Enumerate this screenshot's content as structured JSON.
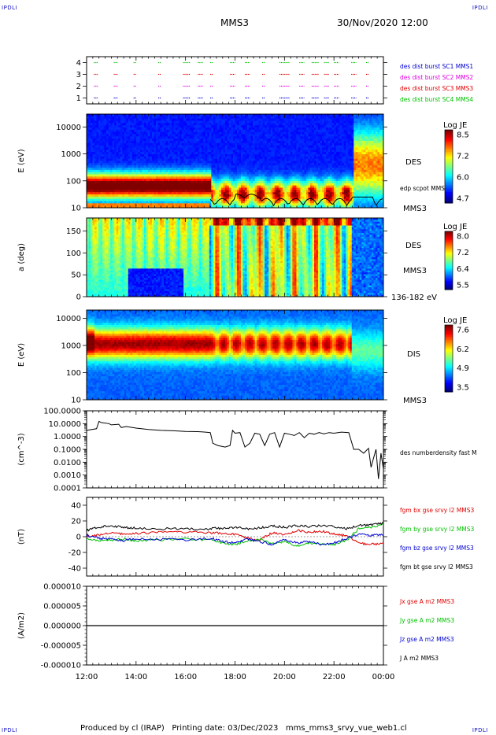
{
  "header": {
    "corner_label": "IPDLI",
    "spacecraft": "MMS3",
    "datetime": "30/Nov/2020 12:00"
  },
  "footer": {
    "produced_by": "Produced by cl (IRAP)",
    "printing_date": "Printing date: 03/Dec/2023",
    "filename": "mms_mms3_srvy_vue_web1.cl"
  },
  "colors": {
    "blue": "#0000d0",
    "magenta": "#e000e0",
    "red": "#e00000",
    "green": "#00c000",
    "black": "#000000"
  },
  "chart_data": [
    {
      "type": "scatter",
      "id": "burst",
      "yticks": [
        "1",
        "2",
        "3",
        "4"
      ],
      "ylim": [
        0.5,
        4.5
      ],
      "series": [
        {
          "name": "des dist burst SC1 MMS1",
          "y": 4,
          "color": "#00c000"
        },
        {
          "name": "des dist burst SC2 MMS2",
          "y": 3,
          "color": "#e00000"
        },
        {
          "name": "des dist burst SC3 MMS3",
          "y": 2,
          "color": "#e000e0"
        },
        {
          "name": "des dist burst SC4 MMS4",
          "y": 1,
          "color": "#0000d0"
        }
      ],
      "legend_colors": [
        "#0000d0",
        "#e000e0",
        "#e00000",
        "#00c000"
      ],
      "intervals_hours": [
        [
          12.3,
          12.45
        ],
        [
          13.1,
          13.25
        ],
        [
          13.9,
          14.0
        ],
        [
          14.9,
          15.0
        ],
        [
          15.9,
          16.2
        ],
        [
          16.5,
          16.7
        ],
        [
          17.0,
          17.1
        ],
        [
          17.8,
          18.0
        ],
        [
          18.4,
          18.6
        ],
        [
          19.1,
          19.2
        ],
        [
          19.8,
          20.2
        ],
        [
          20.6,
          20.8
        ],
        [
          21.1,
          21.4
        ],
        [
          21.6,
          21.8
        ],
        [
          22.0,
          22.2
        ],
        [
          22.7,
          22.9
        ],
        [
          23.3,
          23.4
        ]
      ]
    },
    {
      "type": "heatmap",
      "id": "des-energy",
      "ylabel": "E (eV)",
      "yticks": [
        "10",
        "100",
        "1000",
        "10000"
      ],
      "ylog": true,
      "ylim": [
        10,
        30000
      ],
      "colorbar": {
        "label": "Log JE",
        "ticks": [
          "8.5",
          "7.2",
          "6.0",
          "4.7"
        ],
        "range": [
          4.7,
          8.5
        ]
      },
      "labels": {
        "instrument": "DES",
        "overlay": "edp scpot MMS3",
        "sc": "MMS3"
      }
    },
    {
      "type": "heatmap",
      "id": "des-pitch",
      "ylabel": "a (deg)",
      "yticks": [
        "0",
        "50",
        "100",
        "150"
      ],
      "ylim": [
        0,
        180
      ],
      "colorbar": {
        "label": "Log JE",
        "ticks": [
          "8.0",
          "7.2",
          "6.4",
          "5.5"
        ],
        "range": [
          5.5,
          8.0
        ]
      },
      "labels": {
        "instrument": "DES",
        "sc": "MMS3",
        "energy": "136-182 eV"
      }
    },
    {
      "type": "heatmap",
      "id": "dis-energy",
      "ylabel": "E (eV)",
      "yticks": [
        "10",
        "100",
        "1000",
        "10000"
      ],
      "ylog": true,
      "ylim": [
        10,
        20000
      ],
      "colorbar": {
        "label": "Log JE",
        "ticks": [
          "7.6",
          "6.2",
          "4.9",
          "3.5"
        ],
        "range": [
          3.5,
          7.6
        ]
      },
      "labels": {
        "instrument": "DIS",
        "sc": "MMS3"
      }
    },
    {
      "type": "line",
      "id": "density",
      "ylabel": "(cm^-3)",
      "ylog": true,
      "ylim": [
        0.0001,
        100
      ],
      "yticks": [
        "100.0000",
        "10.0000",
        "1.0000",
        "0.1000",
        "0.0100",
        "0.0010",
        "0.0001"
      ],
      "series": [
        {
          "name": "des numberdensity fast M",
          "color": "#000000",
          "x": [
            12.0,
            12.4,
            12.5,
            12.6,
            12.9,
            13.0,
            13.3,
            13.4,
            13.6,
            14.0,
            14.5,
            15.0,
            15.5,
            16.0,
            16.5,
            16.8,
            17.0,
            17.05,
            17.1,
            17.3,
            17.6,
            17.8,
            17.9,
            18.0,
            18.2,
            18.4,
            18.6,
            18.8,
            19.0,
            19.2,
            19.4,
            19.6,
            19.8,
            20.0,
            20.2,
            20.4,
            20.6,
            20.8,
            21.0,
            21.2,
            21.4,
            21.6,
            21.8,
            22.0,
            22.3,
            22.6,
            22.8,
            23.0,
            23.2,
            23.4,
            23.5,
            23.6,
            23.7,
            23.8,
            23.9,
            24.0
          ],
          "y": [
            3,
            4,
            15,
            12,
            10,
            8,
            9,
            5,
            6,
            4.5,
            3.5,
            3,
            2.8,
            2.5,
            2.4,
            2.2,
            2,
            0.8,
            0.3,
            0.2,
            0.15,
            0.2,
            3,
            1.8,
            2,
            0.15,
            0.3,
            1.8,
            1.5,
            0.2,
            1.5,
            2,
            0.15,
            1.8,
            1.5,
            1.2,
            2,
            0.8,
            1.8,
            1.5,
            2,
            1.6,
            2,
            1.8,
            2.2,
            2,
            0.1,
            0.1,
            0.05,
            0.12,
            0.004,
            0.02,
            0.1,
            0.0005,
            0.05,
            0.003
          ]
        }
      ]
    },
    {
      "type": "line",
      "id": "fgm",
      "ylabel": "(nT)",
      "ylim": [
        -50,
        50
      ],
      "yticks": [
        "40",
        "20",
        "0",
        "-20",
        "-40"
      ],
      "series": [
        {
          "name": "fgm bx gse srvy l2 MMS3",
          "color": "#e00000",
          "x": [
            12,
            12.5,
            13,
            13.5,
            14,
            15,
            16,
            17,
            17.5,
            18,
            18.5,
            19,
            19.5,
            20,
            20.5,
            21,
            21.5,
            22,
            22.5,
            23,
            23.5,
            24
          ],
          "y": [
            0,
            2,
            5,
            3,
            4,
            6,
            6,
            5,
            4,
            3,
            -2,
            -4,
            5,
            2,
            8,
            6,
            7,
            4,
            1,
            -8,
            -10,
            -8
          ]
        },
        {
          "name": "fgm by gse srvy l2 MMS3",
          "color": "#00c000",
          "x": [
            12,
            12.5,
            13,
            13.5,
            14,
            15,
            16,
            17,
            17.5,
            18,
            18.5,
            19,
            19.5,
            20,
            20.5,
            21,
            21.5,
            22,
            22.5,
            23,
            23.5,
            24
          ],
          "y": [
            -2,
            -5,
            -4,
            -3,
            -5,
            -4,
            -3,
            -4,
            -8,
            -10,
            -5,
            -3,
            -9,
            -6,
            -12,
            -8,
            -9,
            -10,
            -5,
            10,
            12,
            16
          ]
        },
        {
          "name": "fgm bz gse srvy l2 MMS3",
          "color": "#0000d0",
          "x": [
            12,
            12.5,
            13,
            13.5,
            14,
            15,
            16,
            17,
            17.5,
            18,
            18.5,
            19,
            19.5,
            20,
            20.5,
            21,
            21.5,
            22,
            22.5,
            23,
            23.5,
            24
          ],
          "y": [
            2,
            -2,
            -3,
            -5,
            -2,
            -3,
            -4,
            -2,
            -6,
            -8,
            -3,
            -6,
            -10,
            -4,
            -8,
            -6,
            -10,
            -8,
            -2,
            3,
            2,
            2
          ]
        },
        {
          "name": "fgm bt gse srvy l2 MMS3",
          "color": "#000000",
          "x": [
            12,
            12.5,
            13,
            13.5,
            14,
            15,
            16,
            17,
            17.5,
            18,
            18.5,
            19,
            19.5,
            20,
            20.5,
            21,
            21.5,
            22,
            22.5,
            23,
            23.5,
            24
          ],
          "y": [
            8,
            12,
            14,
            12,
            11,
            10,
            10,
            10,
            11,
            12,
            10,
            11,
            14,
            12,
            14,
            13,
            14,
            13,
            10,
            14,
            15,
            17
          ]
        }
      ]
    },
    {
      "type": "line",
      "id": "current",
      "ylabel": "(A/m2)",
      "ylim": [
        -1e-05,
        1e-05
      ],
      "yticks": [
        "0.000010",
        "0.000005",
        "0.000000",
        "-0.000005",
        "-0.000010"
      ],
      "series": [
        {
          "name": "Jx gse A m2 MMS3",
          "color": "#e00000",
          "x": [
            12,
            24
          ],
          "y": [
            0,
            0
          ]
        },
        {
          "name": "Jy gse A m2 MMS3",
          "color": "#00c000",
          "x": [
            12,
            24
          ],
          "y": [
            0,
            0
          ]
        },
        {
          "name": "Jz gse A m2 MMS3",
          "color": "#0000d0",
          "x": [
            12,
            24
          ],
          "y": [
            0,
            0
          ]
        },
        {
          "name": "J A m2 MMS3",
          "color": "#000000",
          "x": [
            12,
            24
          ],
          "y": [
            0,
            0
          ]
        }
      ]
    }
  ],
  "time_axis": {
    "labels": [
      "12:00",
      "14:00",
      "16:00",
      "18:00",
      "20:00",
      "22:00",
      "00:00"
    ],
    "hours": [
      12,
      14,
      16,
      18,
      20,
      22,
      24
    ],
    "range": [
      12,
      24
    ]
  }
}
